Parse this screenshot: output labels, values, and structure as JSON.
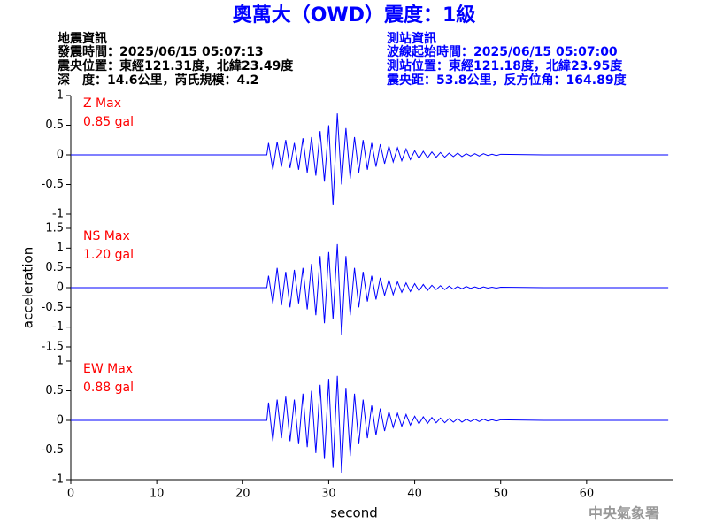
{
  "title": "奧萬大（OWD）震度：1級",
  "event_info": [
    "地震資訊",
    "發震時間：2025/06/15 05:07:13",
    "震央位置：東經121.31度，北緯23.49度",
    "深　度：14.6公里，芮氏規模：4.2"
  ],
  "station_info": [
    "測站資訊",
    "波線起始時間：2025/06/15 05:07:00",
    "測站位置：東經121.18度，北緯23.95度",
    "震央距：53.8公里，反方位角：164.89度"
  ],
  "footer": "中央氣象署",
  "chart_data": [
    {
      "type": "line",
      "annotation": [
        "Z Max",
        "0.85 gal"
      ],
      "color": "#0000ff",
      "annotation_color": "#ff0000",
      "xlim": [
        0,
        70
      ],
      "ylim": [
        -1,
        1
      ],
      "yticks": [
        -1,
        -0.5,
        0,
        0.5,
        1
      ],
      "x": [
        0,
        22.8,
        23,
        23.5,
        24,
        24.5,
        25,
        25.5,
        26,
        26.5,
        27,
        27.5,
        28,
        28.5,
        29,
        29.5,
        30,
        30.5,
        31,
        31.5,
        32,
        32.5,
        33,
        33.5,
        34,
        34.5,
        35,
        35.5,
        36,
        36.5,
        37,
        37.5,
        38,
        38.5,
        39,
        39.5,
        40,
        40.5,
        41,
        41.5,
        42,
        42.5,
        43,
        43.5,
        44,
        44.5,
        45,
        45.5,
        46,
        46.5,
        47,
        47.5,
        48,
        48.5,
        49,
        49.5,
        50,
        55,
        69.5
      ],
      "values": [
        0,
        0,
        0.2,
        -0.25,
        0.22,
        -0.2,
        0.25,
        -0.22,
        0.2,
        -0.25,
        0.28,
        -0.3,
        0.3,
        -0.35,
        0.4,
        -0.45,
        0.5,
        -0.85,
        0.7,
        -0.5,
        0.45,
        -0.4,
        0.3,
        -0.3,
        0.25,
        -0.25,
        0.2,
        -0.2,
        0.18,
        -0.15,
        0.15,
        -0.12,
        0.12,
        -0.1,
        0.1,
        -0.08,
        0.07,
        -0.06,
        0.06,
        -0.05,
        0.05,
        -0.04,
        0.04,
        -0.04,
        0.03,
        -0.03,
        0.03,
        -0.03,
        0.02,
        -0.02,
        0.02,
        -0.02,
        0.02,
        -0.01,
        0.01,
        -0.01,
        0.01,
        0,
        0
      ]
    },
    {
      "type": "line",
      "annotation": [
        "NS Max",
        "1.20 gal"
      ],
      "color": "#0000ff",
      "annotation_color": "#ff0000",
      "ylabel": "acceleration",
      "xlim": [
        0,
        70
      ],
      "ylim": [
        -1.5,
        1.5
      ],
      "yticks": [
        -1.5,
        -1,
        -0.5,
        0,
        0.5,
        1,
        1.5
      ],
      "x": [
        0,
        22.8,
        23,
        23.5,
        24,
        24.5,
        25,
        25.5,
        26,
        26.5,
        27,
        27.5,
        28,
        28.5,
        29,
        29.5,
        30,
        30.5,
        31,
        31.5,
        32,
        32.5,
        33,
        33.5,
        34,
        34.5,
        35,
        35.5,
        36,
        36.5,
        37,
        37.5,
        38,
        38.5,
        39,
        39.5,
        40,
        40.5,
        41,
        41.5,
        42,
        42.5,
        43,
        43.5,
        44,
        44.5,
        45,
        45.5,
        46,
        46.5,
        47,
        47.5,
        48,
        48.5,
        49,
        49.5,
        50,
        55,
        69.5
      ],
      "values": [
        0,
        0,
        0.3,
        -0.4,
        0.5,
        -0.45,
        0.4,
        -0.5,
        0.45,
        -0.4,
        0.5,
        -0.55,
        0.6,
        -0.7,
        0.8,
        -0.9,
        0.9,
        -0.8,
        1.1,
        -1.2,
        0.8,
        -0.7,
        0.5,
        -0.5,
        0.4,
        -0.35,
        0.3,
        -0.3,
        0.25,
        -0.2,
        0.2,
        -0.18,
        0.15,
        -0.12,
        0.12,
        -0.1,
        0.1,
        -0.08,
        0.08,
        -0.07,
        0.06,
        -0.05,
        0.05,
        -0.05,
        0.04,
        -0.04,
        0.03,
        -0.03,
        0.03,
        -0.02,
        0.02,
        -0.02,
        0.02,
        -0.01,
        0.01,
        -0.01,
        0.01,
        0,
        0
      ]
    },
    {
      "type": "line",
      "annotation": [
        "EW Max",
        "0.88 gal"
      ],
      "color": "#0000ff",
      "annotation_color": "#ff0000",
      "xlabel": "second",
      "xlim": [
        0,
        70
      ],
      "xticks": [
        0,
        10,
        20,
        30,
        40,
        50,
        60
      ],
      "ylim": [
        -1,
        1
      ],
      "yticks": [
        -1,
        -0.5,
        0,
        0.5,
        1
      ],
      "x": [
        0,
        22.8,
        23,
        23.5,
        24,
        24.5,
        25,
        25.5,
        26,
        26.5,
        27,
        27.5,
        28,
        28.5,
        29,
        29.5,
        30,
        30.5,
        31,
        31.5,
        32,
        32.5,
        33,
        33.5,
        34,
        34.5,
        35,
        35.5,
        36,
        36.5,
        37,
        37.5,
        38,
        38.5,
        39,
        39.5,
        40,
        40.5,
        41,
        41.5,
        42,
        42.5,
        43,
        43.5,
        44,
        44.5,
        45,
        45.5,
        46,
        46.5,
        47,
        47.5,
        48,
        48.5,
        49,
        49.5,
        50,
        55,
        69.5
      ],
      "values": [
        0,
        0,
        0.3,
        -0.35,
        0.35,
        -0.3,
        0.4,
        -0.35,
        0.35,
        -0.4,
        0.45,
        -0.45,
        0.5,
        -0.55,
        0.6,
        -0.65,
        0.7,
        -0.8,
        0.75,
        -0.88,
        0.55,
        -0.6,
        0.45,
        -0.4,
        0.35,
        -0.3,
        0.25,
        -0.25,
        0.2,
        -0.18,
        0.15,
        -0.12,
        0.12,
        -0.1,
        0.1,
        -0.08,
        0.07,
        -0.06,
        0.06,
        -0.05,
        0.05,
        -0.04,
        0.04,
        -0.04,
        0.03,
        -0.03,
        0.03,
        -0.03,
        0.02,
        -0.02,
        0.02,
        -0.02,
        0.02,
        -0.01,
        0.01,
        -0.01,
        0.01,
        0,
        0
      ]
    }
  ]
}
